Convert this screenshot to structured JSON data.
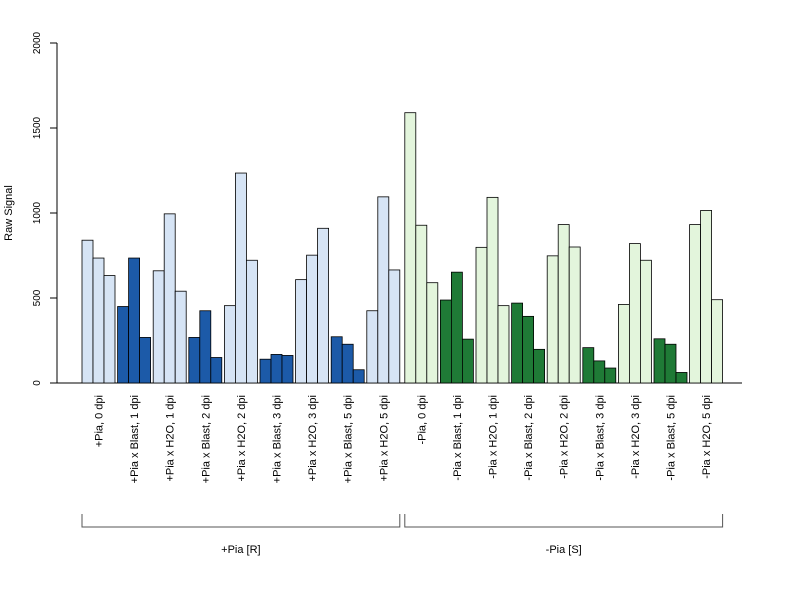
{
  "chart_data": {
    "type": "bar",
    "ylabel": "Raw Signal",
    "ylim": [
      0,
      2000
    ],
    "yticks": [
      0,
      500,
      1000,
      1500,
      2000
    ],
    "grid": false,
    "legend": "none",
    "categories": [
      "+Pia, 0 dpi",
      "+Pia x Blast, 1 dpi",
      "+Pia x H2O, 1 dpi",
      "+Pia x Blast, 2 dpi",
      "+Pia x H2O, 2 dpi",
      "+Pia x Blast, 3 dpi",
      "+Pia x H2O, 3 dpi",
      "+Pia x Blast, 5 dpi",
      "+Pia x H2O, 5 dpi",
      "-Pia, 0 dpi",
      "-Pia x Blast, 1 dpi",
      "-Pia x H2O, 1 dpi",
      "-Pia x Blast, 2 dpi",
      "-Pia x H2O, 2 dpi",
      "-Pia x Blast, 3 dpi",
      "-Pia x H2O, 3 dpi",
      "-Pia x Blast, 5 dpi",
      "-Pia x H2O, 5 dpi"
    ],
    "values": [
      [
        840,
        735,
        632
      ],
      [
        450,
        735,
        268
      ],
      [
        660,
        995,
        540
      ],
      [
        268,
        425,
        150
      ],
      [
        455,
        1235,
        722
      ],
      [
        140,
        168,
        162
      ],
      [
        608,
        752,
        910
      ],
      [
        272,
        228,
        78
      ],
      [
        425,
        1095,
        665
      ],
      [
        1590,
        928,
        590
      ],
      [
        488,
        652,
        258
      ],
      [
        798,
        1092,
        455
      ],
      [
        470,
        392,
        198
      ],
      [
        748,
        932,
        800
      ],
      [
        208,
        130,
        88
      ],
      [
        462,
        820,
        722
      ],
      [
        260,
        228,
        62
      ],
      [
        932,
        1015,
        490
      ]
    ],
    "bar_colors": [
      "#d6e4f5",
      "#1c5aa8",
      "#d6e4f5",
      "#1c5aa8",
      "#d6e4f5",
      "#1c5aa8",
      "#d6e4f5",
      "#1c5aa8",
      "#d6e4f5",
      "#e3f5dc",
      "#1f7a36",
      "#e3f5dc",
      "#1f7a36",
      "#e3f5dc",
      "#1f7a36",
      "#e3f5dc",
      "#1f7a36",
      "#e3f5dc"
    ],
    "groups": [
      {
        "label": "+Pia [R]",
        "from": 0,
        "to": 8
      },
      {
        "label": "-Pia [S]",
        "from": 9,
        "to": 17
      }
    ]
  }
}
